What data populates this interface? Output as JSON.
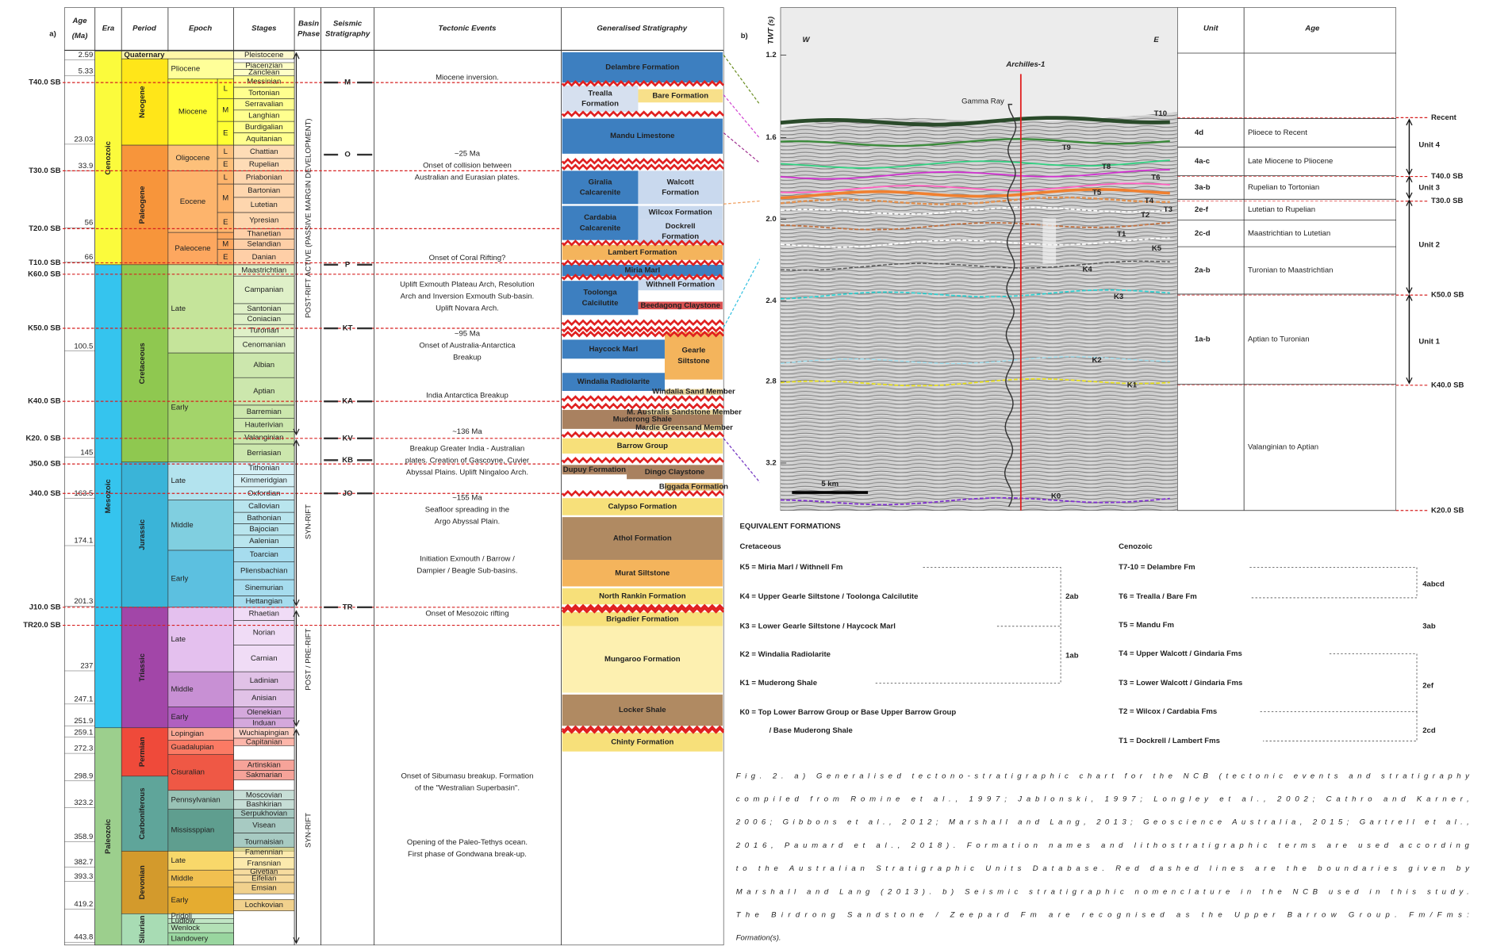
{
  "panel_a": {
    "label": "a)",
    "headers": {
      "age": [
        "Age",
        "(Ma)"
      ],
      "era": "Era",
      "period": "Period",
      "epoch": "Epoch",
      "stages": "Stages",
      "basin": [
        "Basin",
        "Phase"
      ],
      "seismic": [
        "Seismic",
        "Stratigraphy"
      ],
      "tectonic": "Tectonic Events",
      "strat": "Generalised Stratigraphy"
    },
    "ages": [
      2.59,
      5.33,
      23.03,
      33.9,
      56,
      66,
      100.5,
      145,
      163.5,
      174.1,
      201.3,
      237,
      247.1,
      251.9,
      259.1,
      272.3,
      298.9,
      323.2,
      358.9,
      382.7,
      393.3,
      419.2,
      443.8
    ],
    "eras": [
      "Cenozoic",
      "Mesozoic",
      "Paleozoic"
    ],
    "periods": [
      "Quaternary",
      "Neogene",
      "Paleogene",
      "Cretaceous",
      "Jurassic",
      "Triassic",
      "Permian",
      "Carboniferous",
      "Devonian",
      "Silurian"
    ],
    "epochs": [
      "Pliocene",
      "Miocene",
      "Oligocene",
      "Eocene",
      "Paleocene",
      "Late",
      "Early",
      "Late",
      "Middle",
      "Early",
      "Late",
      "Middle",
      "Early",
      "Lopingian",
      "Guadalupian",
      "Cisuralian",
      "Pennsylvanian",
      "Mississppian",
      "Late",
      "Middle",
      "Early",
      "Pridoli",
      "Ludlow",
      "Wenlock",
      "Llandovery"
    ],
    "epoch_subdivisions": [
      "L",
      "M",
      "E",
      "L",
      "E",
      "L",
      "M",
      "E",
      "M",
      "E"
    ],
    "stages": [
      "Pleistocene",
      "Piacenzian",
      "Zanclean",
      "Messinian",
      "Tortonian",
      "Serravalian",
      "Langhian",
      "Burdigalian",
      "Aquitanian",
      "Chattian",
      "Rupelian",
      "Priabonian",
      "Bartonian",
      "Lutetian",
      "Ypresian",
      "Thanetian",
      "Selandian",
      "Danian",
      "Maastrichtian",
      "Campanian",
      "Santonian",
      "Coniacian",
      "Turonian",
      "Cenomanian",
      "Albian",
      "Aptian",
      "Barremian",
      "Hauterivian",
      "Valanginian",
      "Berriasian",
      "Tithonian",
      "Kimmeridgian",
      "Oxfordian",
      "Callovian",
      "Bathonian",
      "Bajocian",
      "Aalenian",
      "Toarcian",
      "Pliensbachian",
      "Sinemurian",
      "Hettangian",
      "Rhaetian",
      "Norian",
      "Carnian",
      "Ladinian",
      "Anisian",
      "Olenekian",
      "Induan",
      "Wuchiapingian",
      "Capitanian",
      "Artinskian",
      "Sakmarian",
      "Moscovian",
      "Bashkirian",
      "Serpukhovian",
      "Visean",
      "Tournaisian",
      "Famennian",
      "Fransnian",
      "Givetian",
      "Eifelian",
      "Emsian",
      "Lochkovian"
    ],
    "sequence_boundaries": [
      "T40.0 SB",
      "T30.0 SB",
      "T20.0 SB",
      "T10.0 SB",
      "K60.0 SB",
      "K50.0 SB",
      "K40.0 SB",
      "K20. 0 SB",
      "J50.0 SB",
      "J40.0 SB",
      "J10.0 SB",
      "TR20.0 SB"
    ],
    "seismic_horizons": [
      "M",
      "O",
      "P",
      "KT",
      "KA",
      "KV",
      "KB",
      "JO",
      "TR"
    ],
    "basin_phases": [
      "POST-RIFT ACTIVE (PASSIVE MARGIN DEVELOPMENT)",
      "SYN-RIFT",
      "POST / PRE-RIFT",
      "SYN-RIFT"
    ],
    "tectonic_events": [
      [
        "Miocene inversion."
      ],
      [
        "~25 Ma",
        "Onset of collision between",
        "Australian and Eurasian plates."
      ],
      [
        "Onset of Coral Rifting?"
      ],
      [
        "Uplift Exmouth Plateau Arch, Resolution",
        "Arch and Inversion Exmouth Sub-basin.",
        "Uplift Novara Arch."
      ],
      [
        "~95 Ma",
        "Onset of Australia-Antarctica",
        "Breakup"
      ],
      [
        "India Antarctica Breakup"
      ],
      [
        "~136 Ma"
      ],
      [
        "Breakup Greater India - Australian",
        "plates. Creation of Gascoyne, Cuvier",
        "Abyssal Plains. Uplift Ningaloo Arch."
      ],
      [
        "~155 Ma",
        "Seafloor spreading in the",
        "Argo Abyssal Plain."
      ],
      [
        "Initiation Exmouth / Barrow /",
        "Dampier / Beagle Sub-basins."
      ],
      [
        "Onset of Mesozoic rifting"
      ],
      [
        "Onset of Sibumasu breakup. Formation",
        "of the \"Westralian Superbasin\"."
      ],
      [
        "Opening of the Paleo-Tethys ocean.",
        "First phase of Gondwana break-up."
      ]
    ],
    "formations": [
      [
        "Delambre Formation"
      ],
      [
        "Trealla",
        "Formation"
      ],
      [
        "Bare Formation"
      ],
      [
        "Mandu Limestone"
      ],
      [
        "Giralia",
        "Calcarenite"
      ],
      [
        "Walcott",
        "Formation"
      ],
      [
        "Cardabia",
        "Calcarenite"
      ],
      [
        "Wilcox Formation"
      ],
      [
        "Dockrell",
        "Formation"
      ],
      [
        "Lambert Formation"
      ],
      [
        "Miria Marl"
      ],
      [
        "Withnell Formation"
      ],
      [
        "Toolonga",
        "Calcilutite"
      ],
      [
        "Beedagong Claystone"
      ],
      [
        "Haycock Marl"
      ],
      [
        "Gearle",
        "Siltstone"
      ],
      [
        "Windalia Radiolarite"
      ],
      [
        "Windalia Sand Member"
      ],
      [
        "Muderong Shale"
      ],
      [
        "M. Australis Sandstone Member"
      ],
      [
        "Mardie Greensand Member"
      ],
      [
        "Barrow Group"
      ],
      [
        "Dupuy Formation"
      ],
      [
        "Dingo Claystone"
      ],
      [
        "Biggada Formation"
      ],
      [
        "Calypso Formation"
      ],
      [
        "Athol Formation"
      ],
      [
        "Murat Siltstone"
      ],
      [
        "North Rankin Formation"
      ],
      [
        "Brigadier Formation"
      ],
      [
        "Mungaroo Formation"
      ],
      [
        "Locker Shale"
      ],
      [
        "Chinty Formation"
      ]
    ]
  },
  "panel_b": {
    "label": "b)",
    "twt_label": "TWT (s)",
    "twt_ticks": [
      "1.2",
      "1.6",
      "2.0",
      "2.4",
      "2.8",
      "3.2"
    ],
    "west": "W",
    "east": "E",
    "well": "Archilles-1",
    "log": "Gamma Ray",
    "scale": "5 km",
    "horizons": [
      "T10",
      "T9",
      "T8",
      "T6",
      "T5",
      "T4",
      "T3",
      "T2",
      "T1",
      "K5",
      "K4",
      "K3",
      "K2",
      "K1",
      "K0"
    ],
    "table": {
      "headers": [
        "Unit",
        "Age"
      ],
      "rows": [
        {
          "unit": "4d",
          "age": "Plioece to Recent"
        },
        {
          "unit": "4a-c",
          "age": "Late Miocene to Pliocene"
        },
        {
          "unit": "3a-b",
          "age": "Rupelian to Tortonian"
        },
        {
          "unit": "2e-f",
          "age": "Lutetian to Rupelian"
        },
        {
          "unit": "2c-d",
          "age": "Maastrichtian to Lutetian"
        },
        {
          "unit": "2a-b",
          "age": "Turonian to Maastrichtian"
        },
        {
          "unit": "1a-b",
          "age": "Aptian to Turonian"
        },
        {
          "age": "Valanginian to Aptian"
        }
      ]
    },
    "units": [
      "Unit 4",
      "Unit 3",
      "Unit 2",
      "Unit 1"
    ],
    "boundaries": [
      "Recent",
      "T40.0 SB",
      "T30.0 SB",
      "K50.0 SB",
      "K40.0 SB",
      "K20.0 SB"
    ]
  },
  "equivalent_formations": {
    "title": "EQUIVALENT FORMATIONS",
    "cretaceous": {
      "title": "Cretaceous",
      "items": [
        [
          "K5 = Miria Marl / Withnell Fm"
        ],
        [
          "K4 = Upper Gearle Siltstone / Toolonga Calcilutite"
        ],
        [
          "K3 = Lower Gearle Siltstone / Haycock Marl"
        ],
        [
          "K2 = Windalia Radiolarite"
        ],
        [
          "K1 = Muderong Shale"
        ],
        [
          "K0 = Top Lower Barrow Group or Base Upper Barrow Group",
          "/ Base Muderong Shale"
        ]
      ],
      "groups": [
        "2ab",
        "1ab"
      ]
    },
    "cenozoic": {
      "title": "Cenozoic",
      "items": [
        [
          "T7-10 = Delambre Fm"
        ],
        [
          "T6 = Trealla / Bare Fm"
        ],
        [
          "T5 = Mandu Fm"
        ],
        [
          "T4 = Upper Walcott / Gindaria Fms"
        ],
        [
          "T3 = Lower Walcott / Gindaria Fms"
        ],
        [
          "T2 = Wilcox / Cardabia Fms"
        ],
        [
          "T1 = Dockrell / Lambert Fms"
        ]
      ],
      "groups": [
        "4abcd",
        "3ab",
        "2ef",
        "2cd"
      ]
    }
  },
  "caption": [
    "Fig. 2. a) Generalised tectono-stratigraphic chart for the NCB (tectonic events and stratigraphy",
    "compiled from Romine et al., 1997; Jablonski, 1997; Longley et al., 2002; Cathro and Karner,",
    "2006; Gibbons et al., 2012; Marshall and Lang, 2013; Geoscience Australia, 2015; Gartrell et al.,",
    "2016, Paumard et al., 2018). Formation names and lithostratigraphic terms are used according",
    "to the Australian Stratigraphic Units Database. Red dashed lines are the boundaries given by",
    "Marshall and Lang (2013). b) Seismic stratigraphic nomenclature in the NCB used in this study.",
    "The Birdrong Sandstone / Zeepard Fm are recognised as the Upper Barrow Group. Fm/Fms:",
    "Formation(s)."
  ]
}
